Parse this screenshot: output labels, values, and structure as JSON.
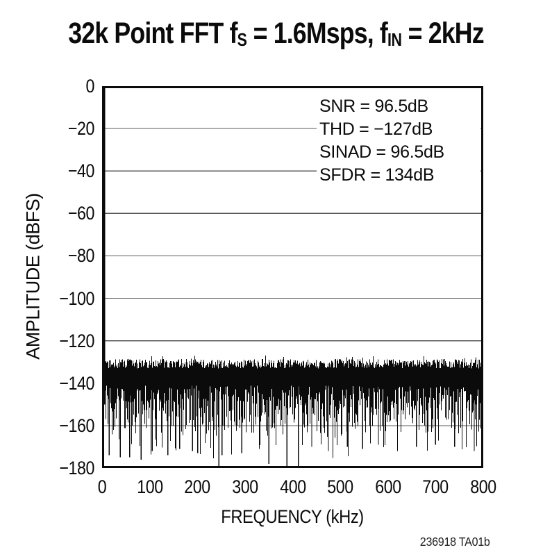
{
  "figure": {
    "background": "#ffffff",
    "ink_color": "#0b0b0b",
    "grid_color": "#58595b",
    "footnote": "236918 TA01b"
  },
  "title": {
    "text": "32k Point FFT fS = 1.6Msps, fIN = 2kHz",
    "segments": [
      {
        "text": "32k Point FFT f"
      },
      {
        "text": "S",
        "subscript": true
      },
      {
        "text": " = 1.6Msps, f"
      },
      {
        "text": "IN",
        "subscript": true
      },
      {
        "text": " = 2kHz"
      }
    ]
  },
  "chart_data": {
    "type": "line",
    "subtype": "fft-noise-spectrum",
    "title": "32k Point FFT fS = 1.6Msps, fIN = 2kHz",
    "xlabel": "FREQUENCY (kHz)",
    "ylabel": "AMPLITUDE (dBFS)",
    "xlim": [
      0,
      800
    ],
    "ylim": [
      -180,
      0
    ],
    "x_ticks": [
      "0",
      "100",
      "200",
      "300",
      "400",
      "500",
      "600",
      "700",
      "800"
    ],
    "y_ticks": [
      "0",
      "−20",
      "−40",
      "−60",
      "−80",
      "−100",
      "−120",
      "−140",
      "−160",
      "−180"
    ],
    "grid": true,
    "legend": false,
    "annotations": [
      "SNR = 96.5dB",
      "THD = −127dB",
      "SINAD = 96.5dB",
      "SFDR = 134dB"
    ],
    "measurements": {
      "snr_db": 96.5,
      "thd_db": -127,
      "sinad_db": 96.5,
      "sfdr_db": 134
    },
    "fundamental": {
      "freq_khz": 2,
      "amplitude_dbfs": 0
    },
    "noise_floor": {
      "top_dbfs_range": [
        -133,
        -127
      ],
      "solid_band_bottom_dbfs": -149,
      "typical_spike_min_dbfs": -162,
      "seed": 1369
    },
    "deep_spikes": [
      [
        15,
        -174
      ],
      [
        38,
        -175
      ],
      [
        58,
        -175
      ],
      [
        82,
        -176
      ],
      [
        105,
        -172
      ],
      [
        138,
        -174
      ],
      [
        163,
        -171
      ],
      [
        190,
        -172
      ],
      [
        201,
        -173
      ],
      [
        245,
        -180
      ],
      [
        252,
        -174
      ],
      [
        293,
        -173
      ],
      [
        330,
        -171
      ],
      [
        350,
        -178
      ],
      [
        388,
        -180
      ],
      [
        412,
        -179
      ],
      [
        440,
        -170
      ],
      [
        475,
        -172
      ],
      [
        515,
        -170
      ],
      [
        547,
        -171
      ],
      [
        580,
        -169
      ],
      [
        620,
        -172
      ],
      [
        660,
        -170
      ],
      [
        700,
        -169
      ],
      [
        740,
        -170
      ],
      [
        781,
        -172
      ]
    ]
  }
}
